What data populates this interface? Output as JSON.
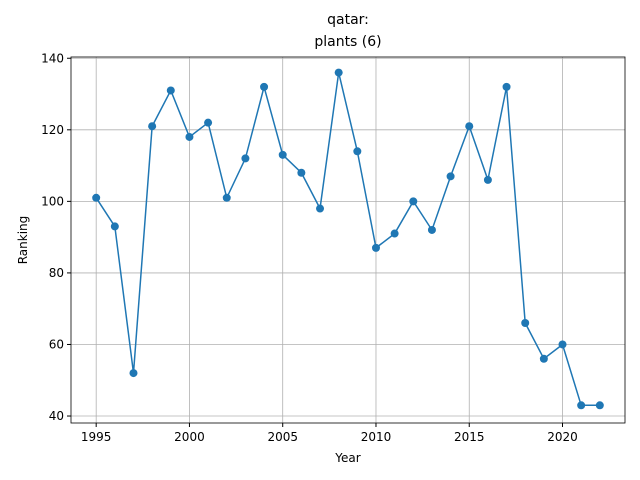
{
  "chart_data": {
    "type": "line",
    "title": [
      "qatar:",
      "plants (6)"
    ],
    "x_label": "Year",
    "y_label": "Ranking",
    "x": [
      1995,
      1996,
      1997,
      1998,
      1999,
      2000,
      2001,
      2002,
      2003,
      2004,
      2005,
      2006,
      2007,
      2008,
      2009,
      2010,
      2011,
      2012,
      2013,
      2014,
      2015,
      2016,
      2017,
      2018,
      2019,
      2020,
      2021,
      2022
    ],
    "series": [
      {
        "color": "#1f77b4",
        "values": [
          101,
          93,
          52,
          121,
          131,
          118,
          122,
          101,
          112,
          132,
          113,
          108,
          98,
          136,
          114,
          87,
          91,
          100,
          92,
          107,
          121,
          106,
          132,
          66,
          56,
          60,
          43,
          43
        ]
      }
    ],
    "xlim": [
      1993.65,
      2023.35
    ],
    "ylim": [
      38.05,
      140.35
    ],
    "xticks": [
      1995,
      2000,
      2005,
      2010,
      2015,
      2020
    ],
    "yticks": [
      40,
      60,
      80,
      100,
      120,
      140
    ],
    "grid": true
  }
}
